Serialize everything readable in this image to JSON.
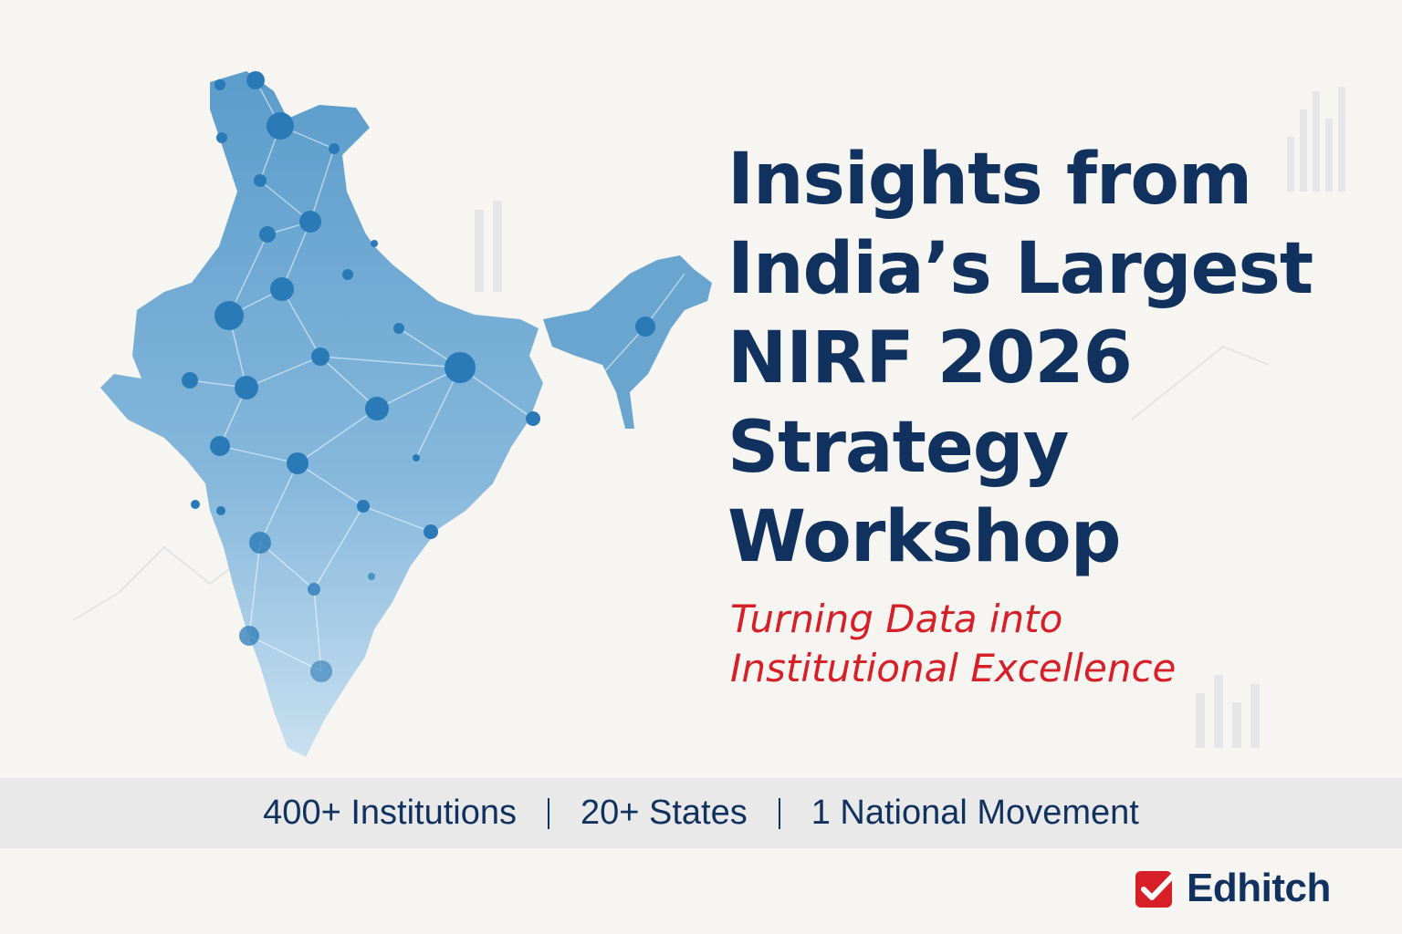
{
  "title_lines": [
    "Insights from",
    "India’s Largest",
    "NIRF 2026",
    "Strategy",
    "Workshop"
  ],
  "subtitle_lines": [
    "Turning Data into",
    "Institutional Excellence"
  ],
  "stats": [
    "400+ Institutions",
    "20+ States",
    "1 National Movement"
  ],
  "brand": {
    "name": "Edhitch",
    "icon": "checkmark-icon"
  },
  "colors": {
    "background": "#f6f5f2",
    "title": "#11325e",
    "subtitle": "#d71f28",
    "map_fill": "#6aa5cf",
    "map_node": "#2a7ab8",
    "stats_bar": "#e9e9ea",
    "brand_red": "#d71f28"
  }
}
